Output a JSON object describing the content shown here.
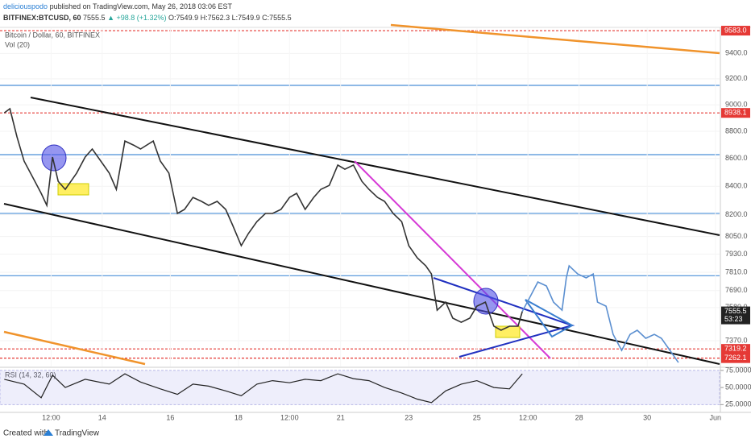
{
  "header": {
    "author": "deliciouspodo",
    "published": "published on TradingView.com, May 26, 2018 03:06 EST",
    "symbol": "BITFINEX:BTCUSD, 60",
    "last": "7555.5",
    "change": "▲ +98.8 (+1.32%)",
    "ohlc": "O:7549.9 H:7562.3 L:7549.9 C:7555.5"
  },
  "footer": {
    "created": "Created with",
    "brand": "TradingView"
  },
  "chart_data": {
    "type": "line",
    "title": "Bitcoin / Dollar, 60, BITFINEX",
    "indicator": "Vol (20)",
    "log": true,
    "xlim": [
      -24,
      483
    ],
    "xticks": [
      {
        "value": 12,
        "label": "12:00"
      },
      {
        "value": 48,
        "label": "14"
      },
      {
        "value": 96,
        "label": "16"
      },
      {
        "value": 144,
        "label": "18"
      },
      {
        "value": 180,
        "label": "12:00"
      },
      {
        "value": 216,
        "label": "21"
      },
      {
        "value": 264,
        "label": "23"
      },
      {
        "value": 312,
        "label": "25"
      },
      {
        "value": 348,
        "label": "12:00"
      },
      {
        "value": 384,
        "label": "28"
      },
      {
        "value": 432,
        "label": "30"
      },
      {
        "value": 480,
        "label": "Jun"
      }
    ],
    "ylim": [
      7211,
      9603
    ],
    "yticks": [
      {
        "value": 9400,
        "label": "9400.0"
      },
      {
        "value": 9200,
        "label": "9200.0"
      },
      {
        "value": 9000,
        "label": "9000.0"
      },
      {
        "value": 8800,
        "label": "8800.0"
      },
      {
        "value": 8600,
        "label": "8600.0"
      },
      {
        "value": 8400,
        "label": "8400.0"
      },
      {
        "value": 8200,
        "label": "8200.0"
      },
      {
        "value": 8050,
        "label": "8050.0"
      },
      {
        "value": 7930,
        "label": "7930.0"
      },
      {
        "value": 7810,
        "label": "7810.0"
      },
      {
        "value": 7690,
        "label": "7690.0"
      },
      {
        "value": 7580,
        "label": "7580.0"
      },
      {
        "value": 7370,
        "label": "7370.0"
      }
    ],
    "price_lines": {
      "color": "#e53935",
      "lines": [
        {
          "value": 9583,
          "label": "9583.0"
        },
        {
          "value": 8938.1,
          "label": "8938.1"
        },
        {
          "value": 7319.2,
          "label": "7319.2"
        },
        {
          "value": 7262.1,
          "label": "7262.1"
        }
      ]
    },
    "levels": {
      "color": "#4a8fd8",
      "values": [
        9149,
        8628,
        8209,
        7787
      ]
    },
    "last_price": {
      "value": 7555.5,
      "countdown": "53:23"
    },
    "series": [
      {
        "color": "#333333",
        "x": [
          -21,
          -17,
          -12,
          -7,
          -1,
          5,
          9,
          13,
          17,
          22,
          30,
          36,
          41,
          47,
          53,
          58,
          64,
          70,
          75,
          84,
          89,
          95,
          101,
          106,
          112,
          118,
          123,
          129,
          135,
          140,
          146,
          151,
          157,
          163,
          168,
          174,
          180,
          185,
          191,
          197,
          202,
          208,
          214,
          219,
          225,
          231,
          236,
          242,
          247,
          253,
          259,
          264,
          270,
          276,
          280,
          284,
          290,
          295,
          301,
          307,
          312,
          318,
          324,
          329,
          335,
          341,
          344
        ],
        "values": [
          8939,
          8970,
          8758,
          8581,
          8465,
          8350,
          8265,
          8610,
          8435,
          8378,
          8494,
          8610,
          8669,
          8581,
          8494,
          8378,
          8728,
          8698,
          8669,
          8728,
          8581,
          8494,
          8209,
          8237,
          8321,
          8293,
          8265,
          8293,
          8237,
          8125,
          7988,
          8070,
          8152,
          8209,
          8209,
          8237,
          8321,
          8350,
          8237,
          8321,
          8378,
          8406,
          8552,
          8522,
          8552,
          8435,
          8378,
          8321,
          8293,
          8209,
          8152,
          7988,
          7906,
          7853,
          7799,
          7563,
          7615,
          7512,
          7486,
          7512,
          7589,
          7615,
          7461,
          7436,
          7461,
          7461,
          7555.5
        ]
      },
      {
        "color": "#5b8fd0",
        "x": [
          344,
          349,
          355,
          361,
          366,
          372,
          375,
          377,
          383,
          389,
          394,
          397,
          403,
          408,
          414,
          420,
          425,
          431,
          437,
          442,
          448,
          454
        ],
        "values": [
          7555.5,
          7641,
          7746,
          7720,
          7615,
          7563,
          7773,
          7853,
          7799,
          7773,
          7799,
          7615,
          7589,
          7410,
          7310,
          7410,
          7436,
          7385,
          7410,
          7385,
          7310,
          7235
        ]
      }
    ],
    "rsi": {
      "label": "RSI (14, 32, 60)",
      "color": "#222222",
      "band": [
        25,
        75
      ],
      "ylim": [
        13.6,
        78.4
      ],
      "yticks": [
        {
          "value": 75,
          "label": "75.0000"
        },
        {
          "value": 50,
          "label": "50.0000"
        },
        {
          "value": 25,
          "label": "25.0000"
        }
      ],
      "x": [
        -21,
        -7,
        5,
        13,
        22,
        36,
        53,
        64,
        75,
        89,
        101,
        112,
        123,
        135,
        146,
        157,
        168,
        180,
        191,
        202,
        214,
        225,
        236,
        247,
        259,
        270,
        280,
        290,
        301,
        312,
        324,
        335,
        344
      ],
      "values": [
        62,
        55,
        35,
        68,
        50,
        62,
        55,
        70,
        58,
        48,
        40,
        55,
        52,
        45,
        38,
        55,
        60,
        57,
        62,
        60,
        70,
        63,
        60,
        50,
        42,
        33,
        28,
        45,
        55,
        60,
        50,
        48,
        70
      ]
    }
  }
}
